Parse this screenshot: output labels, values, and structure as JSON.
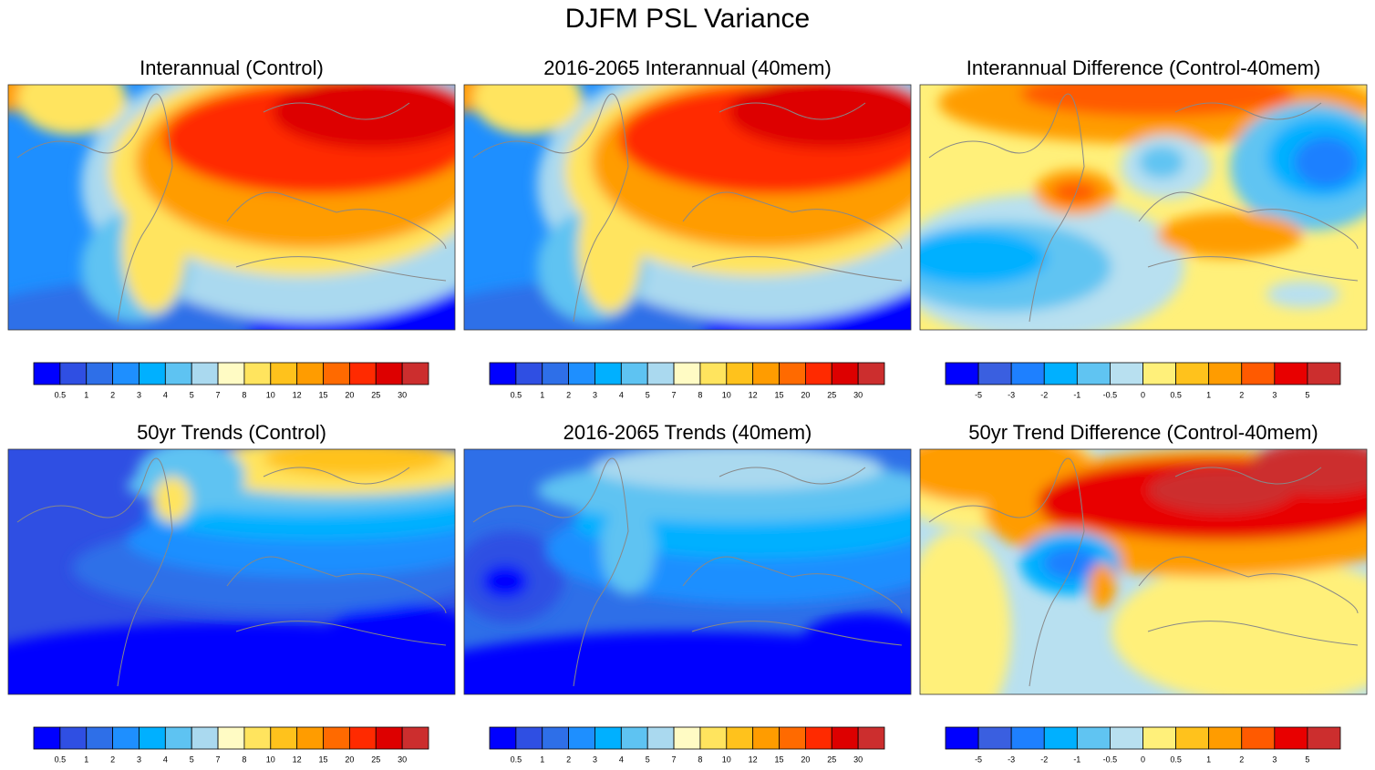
{
  "title": "DJFM PSL Variance",
  "palettes": {
    "variance": {
      "colors": [
        "#0000ff",
        "#2f4fe3",
        "#2e6fe8",
        "#1e8fff",
        "#00b0ff",
        "#5ec3f2",
        "#aad9ef",
        "#fffbc4",
        "#ffe45e",
        "#ffc21c",
        "#ff9c00",
        "#ff6a00",
        "#ff2a00",
        "#dd0000",
        "#cc2e2e"
      ],
      "labels": [
        0.5,
        1,
        2,
        3,
        4,
        5,
        7,
        8,
        10,
        12,
        15,
        20,
        25,
        30
      ]
    },
    "difference": {
      "colors": [
        "#0000ff",
        "#3a5fe0",
        "#1e80ff",
        "#00b0ff",
        "#60c4f2",
        "#b8e0f0",
        "#fff07a",
        "#ffc21c",
        "#ff9c00",
        "#ff5a00",
        "#e80000",
        "#cc2e2e"
      ],
      "labels": [
        -5,
        -3,
        -2,
        -1,
        -0.5,
        0,
        0.5,
        1,
        2,
        3,
        5
      ]
    }
  },
  "panels": [
    {
      "title": "Interannual (Control)",
      "palette": "variance"
    },
    {
      "title": "2016-2065 Interannual (40mem)",
      "palette": "variance"
    },
    {
      "title": "Interannual Difference (Control-40mem)",
      "palette": "difference"
    },
    {
      "title": "50yr Trends (Control)",
      "palette": "variance"
    },
    {
      "title": "2016-2065 Trends (40mem)",
      "palette": "variance"
    },
    {
      "title": "50yr Trend Difference (Control-40mem)",
      "palette": "difference"
    }
  ]
}
